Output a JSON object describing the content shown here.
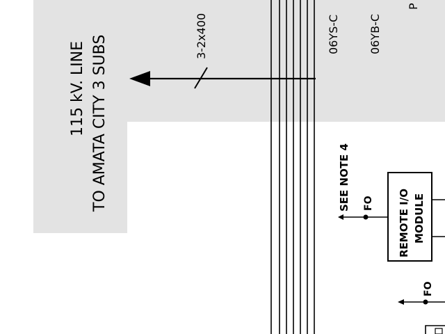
{
  "diagram": {
    "line_label_1": "115 kV. LINE",
    "line_label_2": "TO AMATA CITY 3 SUBS",
    "conductor_label": "3-2x400",
    "cable_label_1": "06YS-C",
    "cable_label_2": "06YB-C",
    "edge_letter": "P",
    "note_label": "SEE NOTE 4",
    "fo_label_1": "FO",
    "fo_label_2": "FO",
    "module_label_1": "REMOTE I/O",
    "module_label_2": "MODULE"
  }
}
